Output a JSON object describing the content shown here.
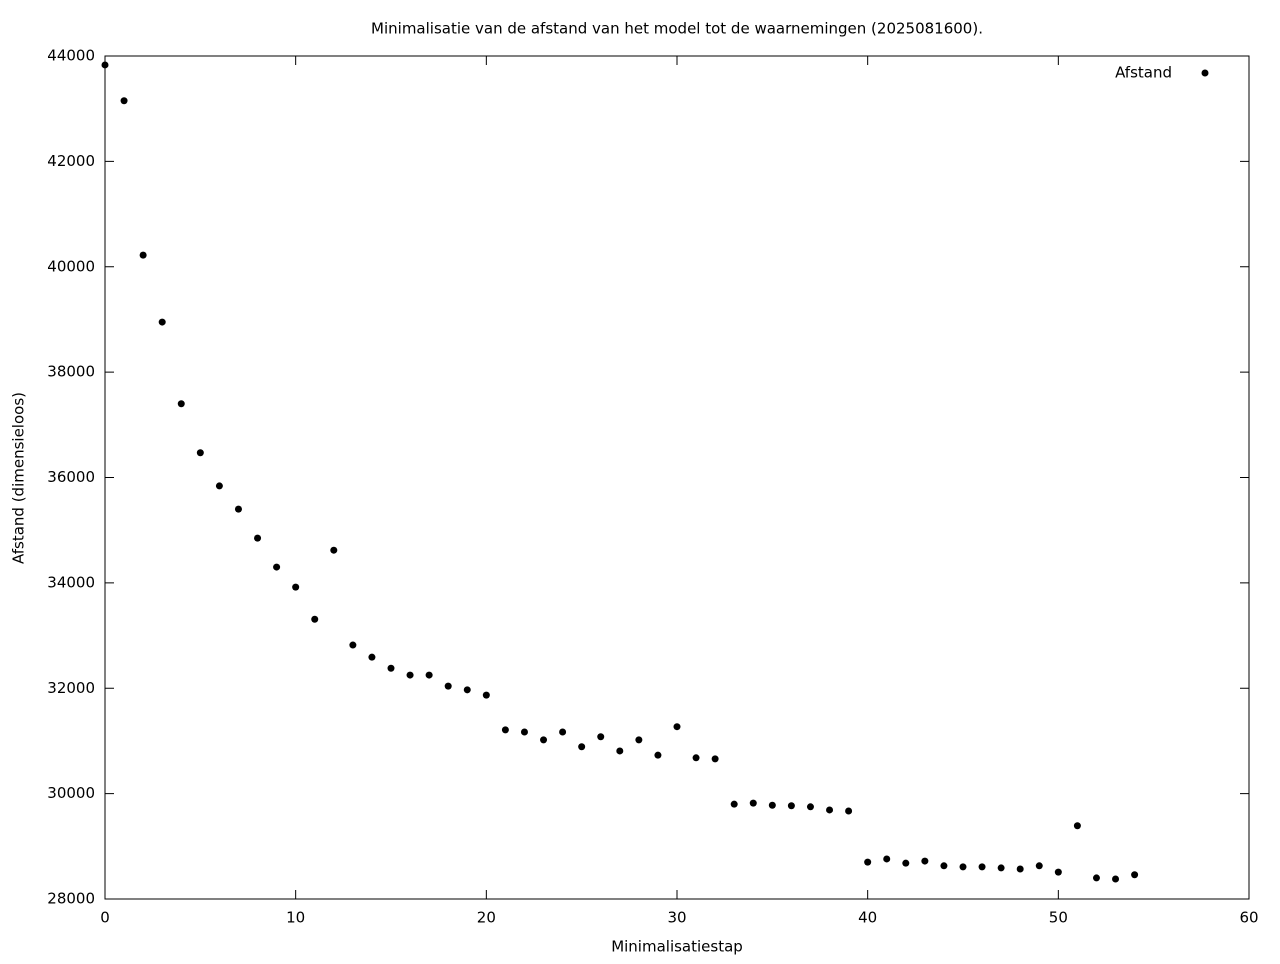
{
  "chart_data": {
    "type": "scatter",
    "title": "Minimalisatie van de afstand van het model tot de waarnemingen (2025081600).",
    "x_label": "Minimalisatiestap",
    "y_label": "Afstand (dimensieloos)",
    "legend_position": "top-right",
    "series": [
      {
        "name": "Afstand",
        "color": "#000000",
        "x": [
          0,
          1,
          2,
          3,
          4,
          5,
          6,
          7,
          8,
          9,
          10,
          11,
          12,
          13,
          14,
          15,
          16,
          17,
          18,
          19,
          20,
          21,
          22,
          23,
          24,
          25,
          26,
          27,
          28,
          29,
          30,
          31,
          32,
          33,
          34,
          35,
          36,
          37,
          38,
          39,
          40,
          41,
          42,
          43,
          44,
          45,
          46,
          47,
          48,
          49,
          50,
          51,
          52,
          53,
          54
        ],
        "values": [
          43830,
          43150,
          40220,
          38950,
          37400,
          36470,
          35840,
          35400,
          34850,
          34300,
          33920,
          33310,
          34620,
          32820,
          32590,
          32380,
          32250,
          32250,
          32040,
          31970,
          31870,
          31210,
          31170,
          31020,
          31170,
          30890,
          31080,
          30810,
          31020,
          30730,
          31270,
          30680,
          30660,
          29800,
          29820,
          29780,
          29770,
          29750,
          29690,
          29670,
          28700,
          28760,
          28680,
          28720,
          28630,
          28610,
          28610,
          28590,
          28570,
          28630,
          28510,
          29390,
          28400,
          28380,
          28460
        ]
      }
    ],
    "xlim": [
      0,
      60
    ],
    "xticks": [
      0,
      10,
      20,
      30,
      40,
      50,
      60
    ],
    "ylim": [
      28000,
      44000
    ],
    "yticks": [
      28000,
      30000,
      32000,
      34000,
      36000,
      38000,
      40000,
      42000,
      44000
    ],
    "grid": false
  }
}
